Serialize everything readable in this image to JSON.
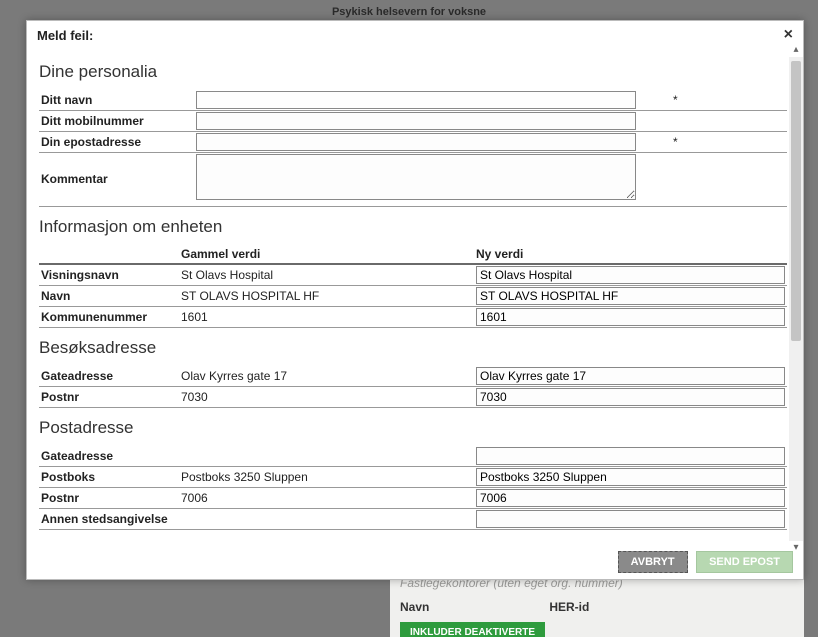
{
  "background": {
    "header": "Psykisk helsevern for voksne",
    "faint_line": "Fastlegekontorer (uten eget org. nummer)",
    "col1": "Navn",
    "col2": "HER-id",
    "green_button": "INKLUDER DEAKTIVERTE"
  },
  "modal": {
    "title": "Meld feil:",
    "close": "×",
    "personalia": {
      "heading": "Dine personalia",
      "name_label": "Ditt navn",
      "name_req": "*",
      "mobile_label": "Ditt mobilnummer",
      "email_label": "Din epostadresse",
      "email_req": "*",
      "comment_label": "Kommentar"
    },
    "unit": {
      "heading": "Informasjon om enheten",
      "col_old": "Gammel verdi",
      "col_new": "Ny verdi",
      "rows": [
        {
          "k": "Visningsnavn",
          "old": "St Olavs Hospital",
          "new": "St Olavs Hospital"
        },
        {
          "k": "Navn",
          "old": "ST OLAVS HOSPITAL HF",
          "new": "ST OLAVS HOSPITAL HF"
        },
        {
          "k": "Kommunenummer",
          "old": "1601",
          "new": "1601"
        }
      ]
    },
    "visit": {
      "heading": "Besøksadresse",
      "rows": [
        {
          "k": "Gateadresse",
          "old": "Olav Kyrres gate 17",
          "new": "Olav Kyrres gate 17"
        },
        {
          "k": "Postnr",
          "old": "7030",
          "new": "7030"
        }
      ]
    },
    "post": {
      "heading": "Postadresse",
      "rows": [
        {
          "k": "Gateadresse",
          "old": "",
          "new": ""
        },
        {
          "k": "Postboks",
          "old": "Postboks 3250 Sluppen",
          "new": "Postboks 3250 Sluppen"
        },
        {
          "k": "Postnr",
          "old": "7006",
          "new": "7006"
        },
        {
          "k": "Annen stedsangivelse",
          "old": "",
          "new": ""
        }
      ]
    },
    "footer": {
      "cancel": "AVBRYT",
      "send": "SEND EPOST"
    }
  },
  "colors": {
    "overlay_bg": "#7a7a7a",
    "modal_bg": "#ffffff",
    "rule": "#999999",
    "btn_cancel_bg": "#8a8a8a",
    "btn_send_bg": "#b7d8b1",
    "green_btn_bg": "#2e9b3d"
  }
}
